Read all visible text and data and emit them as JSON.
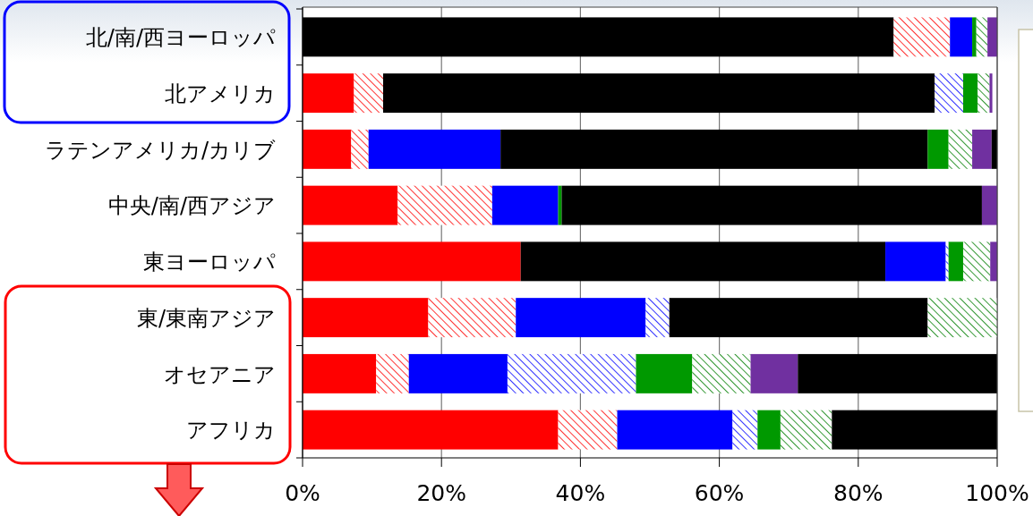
{
  "chart_data": {
    "type": "bar",
    "orientation": "horizontal",
    "stacked": true,
    "grid": "x",
    "categories": [
      "北/南/西ヨーロッパ",
      "北アメリカ",
      "ラテンアメリカ/カリブ",
      "中央/南/西アジア",
      "東ヨーロッパ",
      "東/東南アジア",
      "オセアニア",
      "アフリカ"
    ],
    "xlim": [
      0,
      100
    ],
    "xticks": [
      {
        "value": 0,
        "label": "0%"
      },
      {
        "value": 20,
        "label": "20%"
      },
      {
        "value": 40,
        "label": "40%"
      },
      {
        "value": 60,
        "label": "60%"
      },
      {
        "value": 80,
        "label": "80%"
      },
      {
        "value": 100,
        "label": "100%"
      }
    ],
    "series": [
      {
        "colors": [
          "#000000",
          "#ff0000",
          "#ff0000",
          "#ff0000",
          "#ff0000",
          "#ff0000",
          "#ff0000",
          "#ff0000"
        ],
        "values": [
          85.1,
          7.4,
          7.0,
          13.7,
          31.4,
          18.1,
          10.6,
          36.8
        ]
      },
      {
        "colors": [
          "#ff9a9a",
          "#ff9a9a",
          "#ff9a9a",
          "#ff9a9a",
          "#000000",
          "#ff9a9a",
          "#ff9a9a",
          "#ff9a9a"
        ],
        "values": [
          8.1,
          4.2,
          2.5,
          13.6,
          52.5,
          12.6,
          4.7,
          8.5
        ]
      },
      {
        "colors": [
          "#0000ff",
          "#000000",
          "#0000ff",
          "#0000ff",
          "#0000ff",
          "#0000ff",
          "#0000ff",
          "#0000ff"
        ],
        "values": [
          3.2,
          79.4,
          19.0,
          9.5,
          8.7,
          18.7,
          14.2,
          16.6
        ]
      },
      {
        "colors": [
          "#9a9aff",
          "#9a9aff",
          "#000000",
          "#9a9aff",
          "#9a9aff",
          "#9a9aff",
          "#9a9aff",
          "#9a9aff"
        ],
        "values": [
          0,
          4.1,
          61.5,
          0,
          0.4,
          3.4,
          18.5,
          3.6
        ]
      },
      {
        "colors": [
          "#009900",
          "#009900",
          "#009900",
          "#009900",
          "#009900",
          "#000000",
          "#009900",
          "#009900"
        ],
        "values": [
          0.6,
          2.1,
          3.0,
          0.5,
          2.1,
          37.2,
          8.1,
          3.3
        ]
      },
      {
        "colors": [
          "#8ccc8c",
          "#8ccc8c",
          "#8ccc8c",
          "#000000",
          "#8ccc8c",
          "#8ccc8c",
          "#8ccc8c",
          "#8ccc8c"
        ],
        "values": [
          1.6,
          1.7,
          3.4,
          60.5,
          3.9,
          10.0,
          8.4,
          7.4
        ]
      },
      {
        "colors": [
          "#7030a0",
          "#7030a0",
          "#7030a0",
          "#7030a0",
          "#7030a0",
          "#7030a0",
          "#7030a0",
          "#000000"
        ],
        "values": [
          1.4,
          0.4,
          2.8,
          2.2,
          1.0,
          0,
          6.8,
          23.8
        ]
      },
      {
        "colors": [
          "#000000",
          "#000000",
          "#000000",
          "#000000",
          "#000000",
          "#000000",
          "#000000",
          "#000000"
        ],
        "values": [
          0,
          0,
          0.8,
          0,
          0,
          0,
          28.7,
          0
        ]
      }
    ]
  }
}
